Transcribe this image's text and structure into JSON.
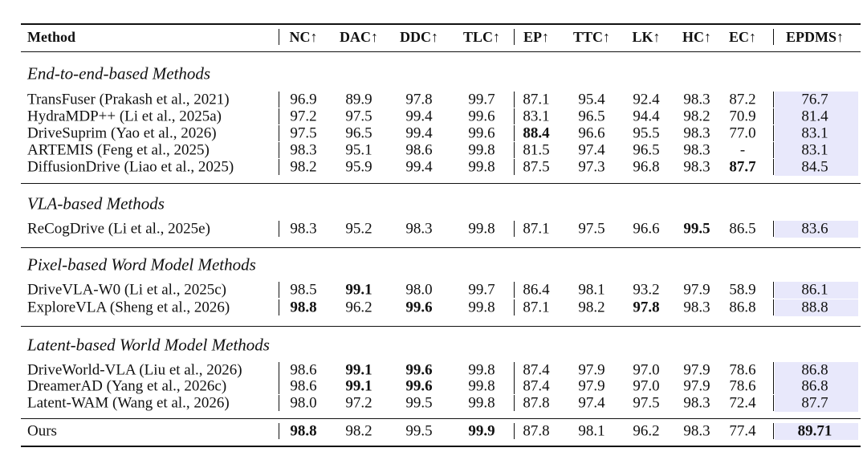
{
  "table": {
    "header": [
      "Method",
      "NC↑",
      "DAC↑",
      "DDC↑",
      "TLC↑",
      "EP↑",
      "TTC↑",
      "LK↑",
      "HC↑",
      "EC↑",
      "EPDMS↑"
    ],
    "sections": [
      {
        "title": "End-to-end-based Methods",
        "rows": [
          {
            "cells": [
              "TransFuser (Prakash et al., 2021)",
              "96.9",
              "89.9",
              "97.8",
              "99.7",
              "87.1",
              "95.4",
              "92.4",
              "98.3",
              "87.2",
              "76.7"
            ],
            "bold": []
          },
          {
            "cells": [
              "HydraMDP++ (Li et al., 2025a)",
              "97.2",
              "97.5",
              "99.4",
              "99.6",
              "83.1",
              "96.5",
              "94.4",
              "98.2",
              "70.9",
              "81.4"
            ],
            "bold": []
          },
          {
            "cells": [
              "DriveSuprim (Yao et al., 2026)",
              "97.5",
              "96.5",
              "99.4",
              "99.6",
              "88.4",
              "96.6",
              "95.5",
              "98.3",
              "77.0",
              "83.1"
            ],
            "bold": [
              5
            ]
          },
          {
            "cells": [
              "ARTEMIS (Feng et al., 2025)",
              "98.3",
              "95.1",
              "98.6",
              "99.8",
              "81.5",
              "97.4",
              "96.5",
              "98.3",
              "-",
              "83.1"
            ],
            "bold": []
          },
          {
            "cells": [
              "DiffusionDrive (Liao et al., 2025)",
              "98.2",
              "95.9",
              "99.4",
              "99.8",
              "87.5",
              "97.3",
              "96.8",
              "98.3",
              "87.7",
              "84.5"
            ],
            "bold": [
              9
            ]
          }
        ]
      },
      {
        "title": "VLA-based Methods",
        "rows": [
          {
            "cells": [
              "ReCogDrive (Li et al., 2025e)",
              "98.3",
              "95.2",
              "98.3",
              "99.8",
              "87.1",
              "97.5",
              "96.6",
              "99.5",
              "86.5",
              "83.6"
            ],
            "bold": [
              8
            ]
          }
        ]
      },
      {
        "title": "Pixel-based Word Model Methods",
        "rows": [
          {
            "cells": [
              "DriveVLA-W0 (Li et al., 2025c)",
              "98.5",
              "99.1",
              "98.0",
              "99.7",
              "86.4",
              "98.1",
              "93.2",
              "97.9",
              "58.9",
              "86.1"
            ],
            "bold": [
              2
            ]
          },
          {
            "cells": [
              "ExploreVLA (Sheng et al., 2026)",
              "98.8",
              "96.2",
              "99.6",
              "99.8",
              "87.1",
              "98.2",
              "97.8",
              "98.3",
              "86.8",
              "88.8"
            ],
            "bold": [
              1,
              3,
              7
            ]
          }
        ]
      },
      {
        "title": "Latent-based World Model Methods",
        "rows": [
          {
            "cells": [
              "DriveWorld-VLA (Liu et al., 2026)",
              "98.6",
              "99.1",
              "99.6",
              "99.8",
              "87.4",
              "97.9",
              "97.0",
              "97.9",
              "78.6",
              "86.8"
            ],
            "bold": [
              2,
              3
            ]
          },
          {
            "cells": [
              "DreamerAD (Yang et al., 2026c)",
              "98.6",
              "99.1",
              "99.6",
              "99.8",
              "87.4",
              "97.9",
              "97.0",
              "97.9",
              "78.6",
              "86.8"
            ],
            "bold": [
              2,
              3
            ]
          },
          {
            "cells": [
              "Latent-WAM (Wang et al., 2026)",
              "98.0",
              "97.2",
              "99.5",
              "99.8",
              "87.8",
              "97.4",
              "97.5",
              "98.3",
              "72.4",
              "87.7"
            ],
            "bold": []
          }
        ]
      }
    ],
    "final": {
      "cells": [
        "Ours",
        "98.8",
        "98.2",
        "99.5",
        "99.9",
        "87.8",
        "98.1",
        "96.2",
        "98.3",
        "77.4",
        "89.71"
      ],
      "bold": [
        1,
        4,
        10
      ]
    }
  }
}
